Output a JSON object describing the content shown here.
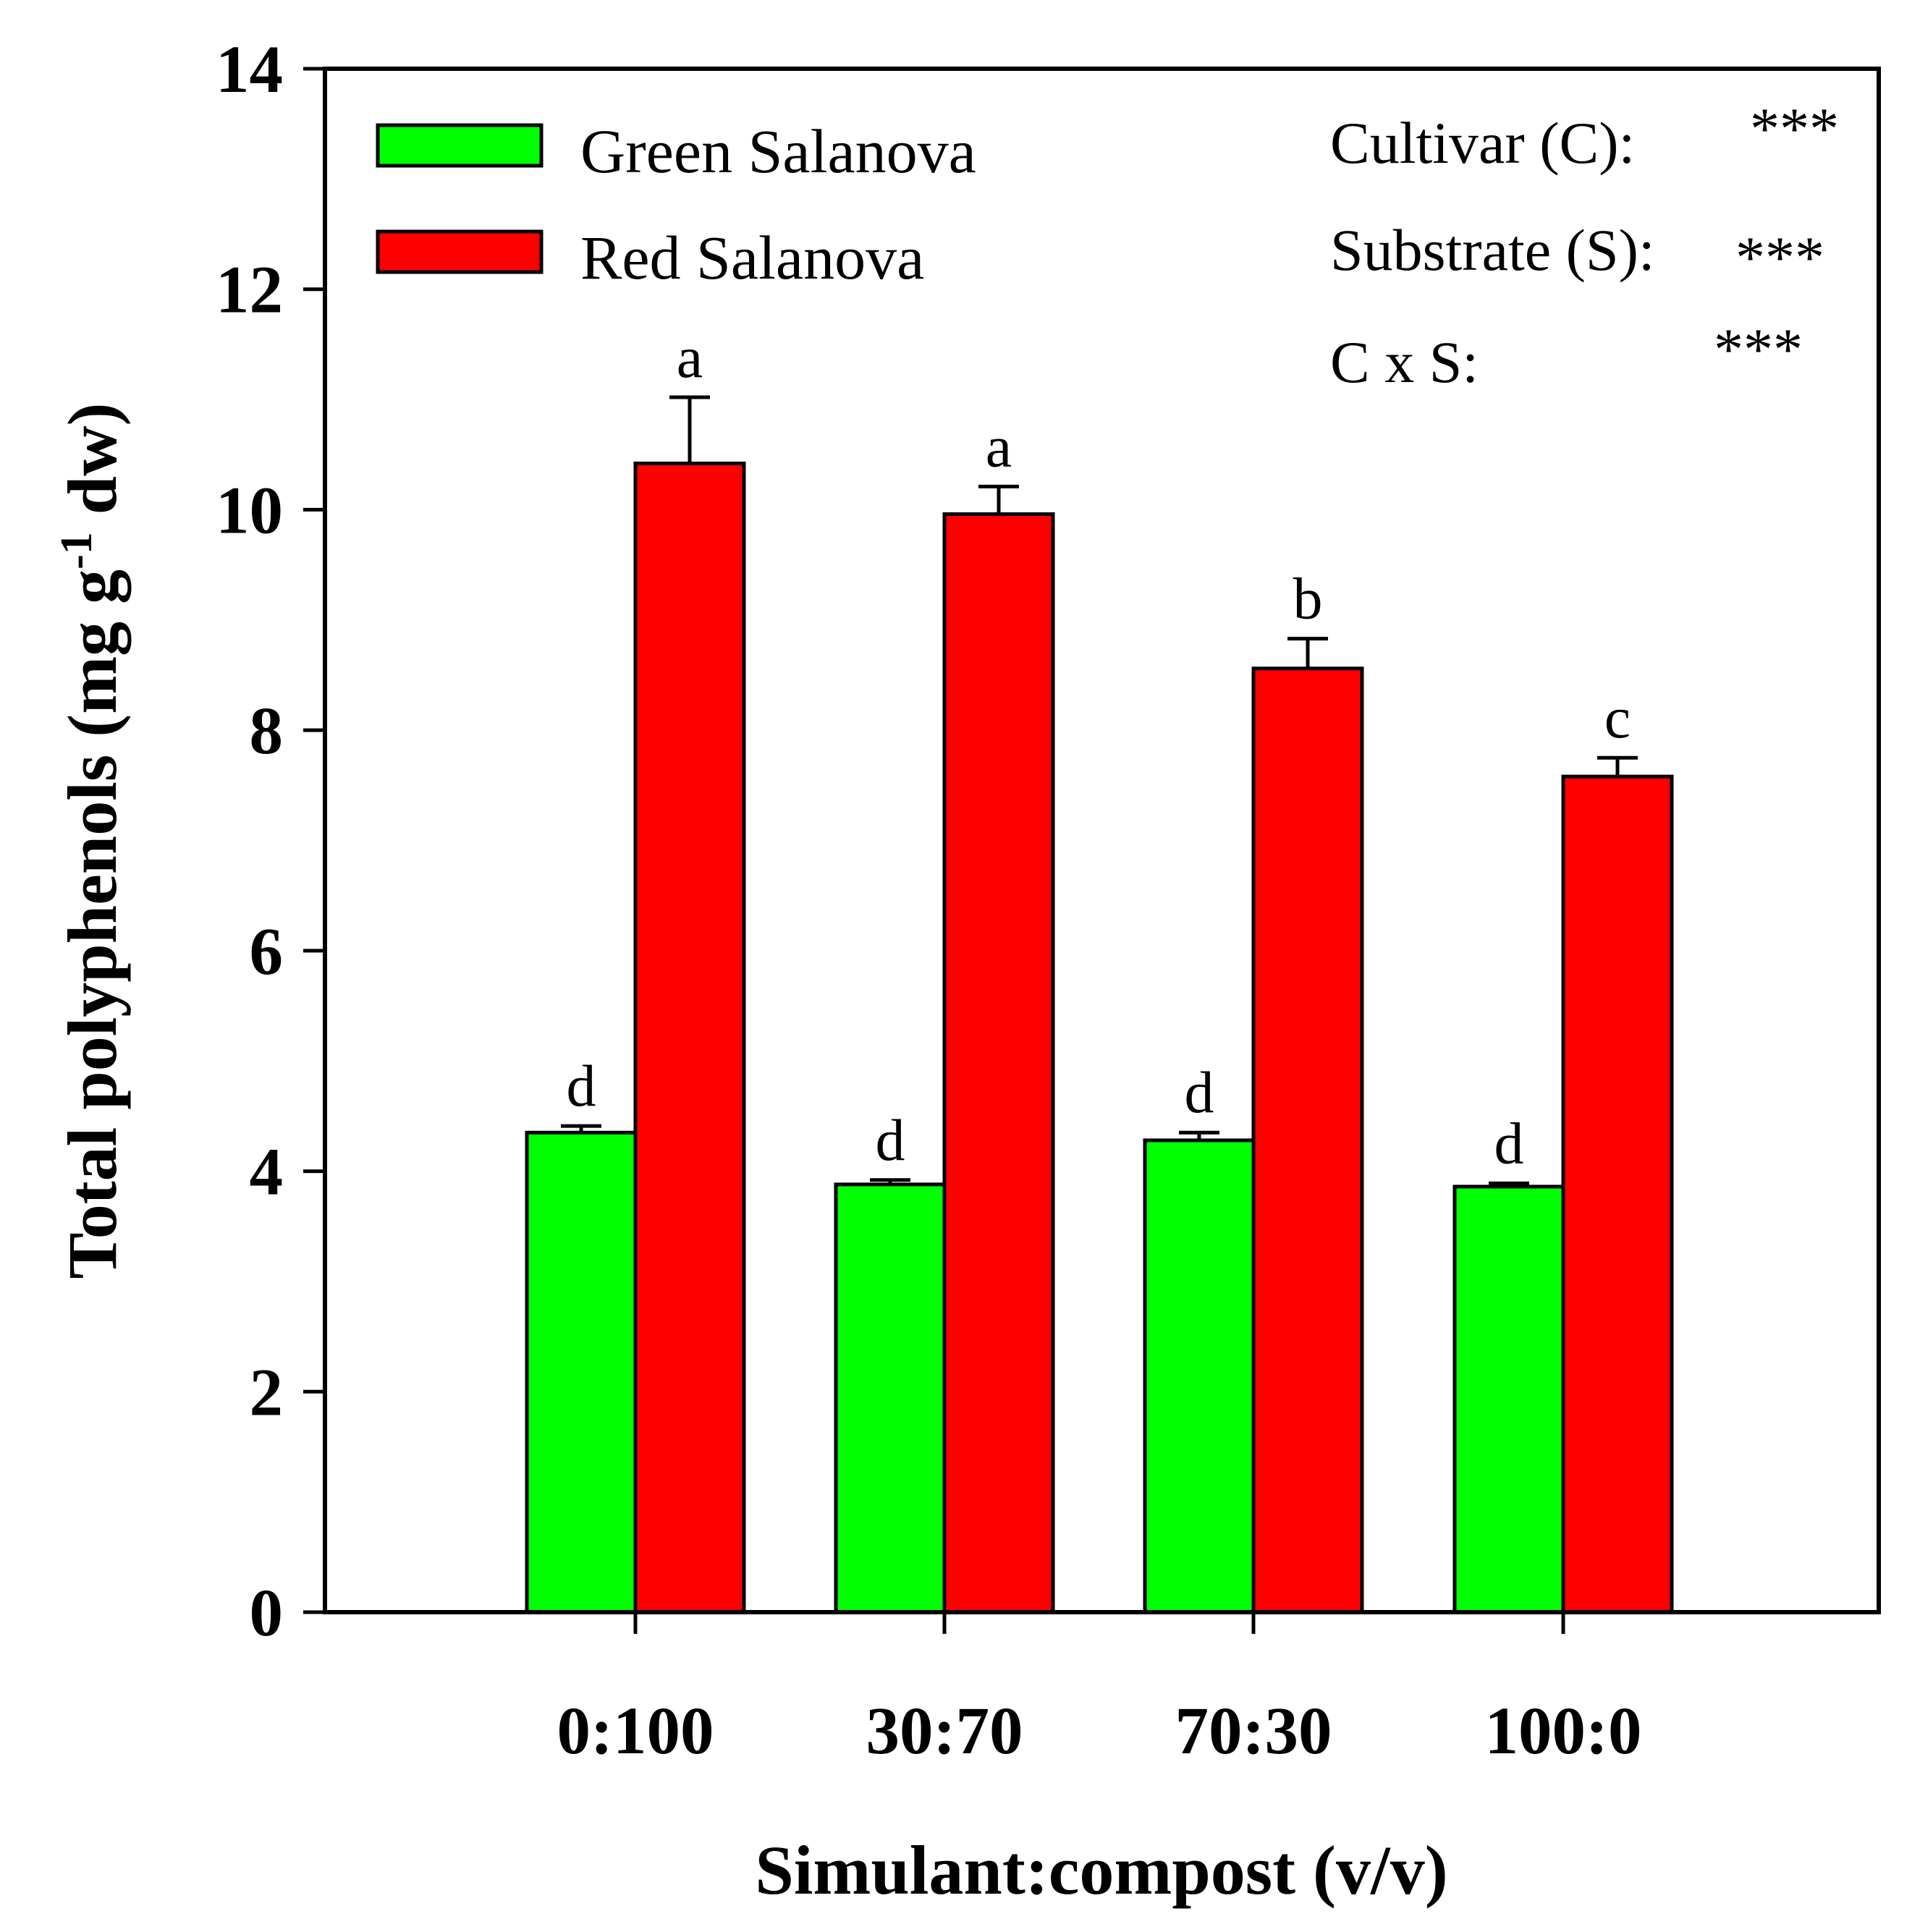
{
  "chart_data": {
    "type": "bar",
    "title": "",
    "xlabel": "Simulant:compost (v/v)",
    "ylabel": "Total polyphenols (mg g",
    "ylabel_sup": "-1",
    "ylabel_tail": " dw)",
    "ylim": [
      0,
      14
    ],
    "yticks": [
      "0",
      "2",
      "4",
      "6",
      "8",
      "10",
      "12",
      "14"
    ],
    "categories": [
      "0:100",
      "30:70",
      "70:30",
      "100:0"
    ],
    "series": [
      {
        "name": "Green Salanova",
        "color": "#00ff00",
        "values": [
          4.35,
          3.88,
          4.28,
          3.86
        ],
        "errors": [
          0.06,
          0.04,
          0.07,
          0.03
        ],
        "letters": [
          "d",
          "d",
          "d",
          "d"
        ]
      },
      {
        "name": "Red Salanova",
        "color": "#ff0000",
        "values": [
          10.42,
          9.96,
          8.56,
          7.58
        ],
        "errors": [
          0.6,
          0.25,
          0.27,
          0.17
        ],
        "letters": [
          "a",
          "a",
          "b",
          "c"
        ]
      }
    ],
    "legend_position": "top-left",
    "stats": [
      {
        "label": "Cultivar (C):",
        "value": "***"
      },
      {
        "label": "Substrate (S):",
        "value": "***"
      },
      {
        "label": "C x S:",
        "value": "***"
      }
    ]
  }
}
